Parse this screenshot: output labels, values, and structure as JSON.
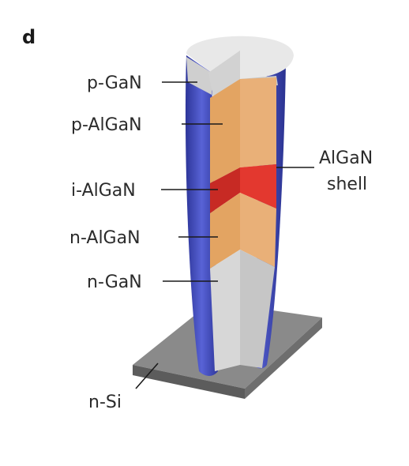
{
  "panel_letter": "d",
  "labels": {
    "p_gan": "p-GaN",
    "p_algan": "p-AlGaN",
    "i_algan": "i-AlGaN",
    "n_algan": "n-AlGaN",
    "n_gan": "n-GaN",
    "n_si": "n-Si",
    "shell_line1": "AlGaN",
    "shell_line2": "shell"
  },
  "colors": {
    "shell": "#4a55c8",
    "p_gan": "#cfcfcf",
    "p_algan": "#e6a565",
    "i_algan": "#e1342c",
    "n_algan": "#e6a565",
    "n_gan": "#d2d2d2",
    "substrate": "#8a8a8a"
  }
}
